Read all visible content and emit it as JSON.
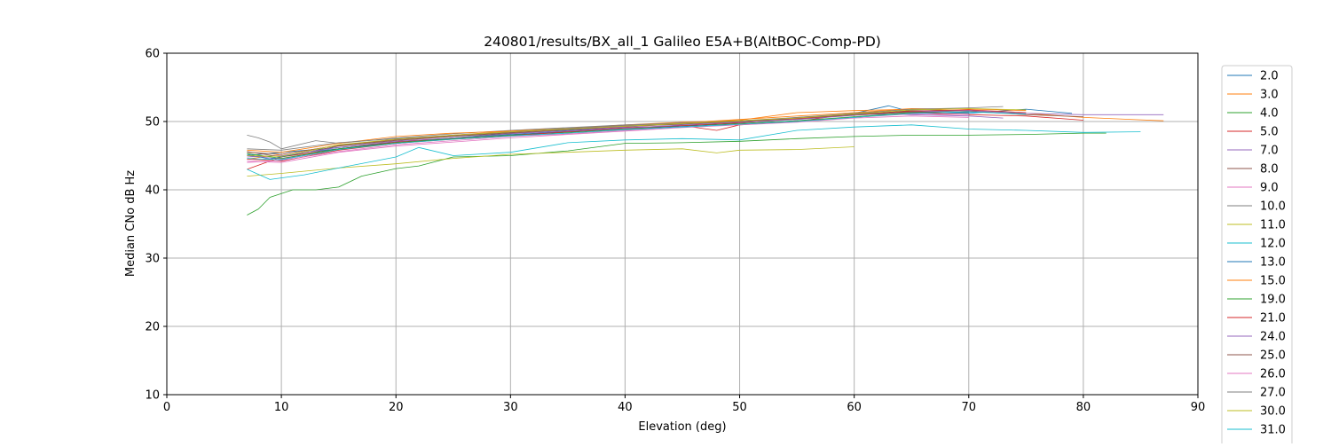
{
  "chart_data": {
    "type": "line",
    "title": "240801/results/BX_all_1 Galileo E5A+B(AltBOC-Comp-PD)",
    "xlabel": "Elevation (deg)",
    "ylabel": "Median CNo dB Hz",
    "xlim": [
      0,
      90
    ],
    "ylim": [
      10,
      60
    ],
    "xticks": [
      "0",
      "10",
      "20",
      "30",
      "40",
      "50",
      "60",
      "70",
      "80",
      "90"
    ],
    "yticks": [
      "10",
      "20",
      "30",
      "40",
      "50",
      "60"
    ],
    "grid": true,
    "legend_position": "right",
    "series": [
      {
        "name": "2.0",
        "color": "#1f77b4",
        "x": [
          7,
          10,
          15,
          20,
          25,
          30,
          35,
          40,
          45,
          50,
          55,
          60,
          63,
          65,
          70,
          75,
          79
        ],
        "values": [
          45.0,
          45.5,
          46.2,
          47.0,
          47.6,
          48.3,
          48.7,
          49.2,
          49.8,
          50.1,
          50.4,
          51.2,
          52.3,
          51.4,
          51.2,
          51.8,
          51.2
        ]
      },
      {
        "name": "3.0",
        "color": "#ff7f0e",
        "x": [
          7,
          10,
          15,
          20,
          25,
          30,
          35,
          40,
          45,
          50,
          55,
          60,
          65,
          70,
          75,
          80,
          87
        ],
        "values": [
          44.5,
          45.2,
          46.5,
          47.4,
          48.0,
          48.6,
          49.0,
          49.5,
          49.9,
          50.2,
          51.3,
          51.6,
          51.8,
          51.6,
          51.2,
          50.6,
          50.1
        ]
      },
      {
        "name": "4.0",
        "color": "#2ca02c",
        "x": [
          7,
          8,
          9,
          11,
          13,
          15,
          17,
          20,
          22,
          25,
          30,
          35,
          40,
          45,
          50,
          55,
          60,
          65,
          70,
          75,
          80,
          82
        ],
        "values": [
          36.3,
          37.2,
          38.9,
          40.0,
          40.0,
          40.4,
          42.0,
          43.1,
          43.5,
          44.8,
          45.0,
          45.7,
          46.8,
          46.9,
          47.1,
          47.5,
          47.8,
          48.0,
          48.0,
          48.1,
          48.3,
          48.3
        ]
      },
      {
        "name": "5.0",
        "color": "#d62728",
        "x": [
          7,
          10,
          15,
          20,
          25,
          30,
          35,
          40,
          45,
          48,
          50,
          55,
          60,
          65,
          70,
          75,
          80
        ],
        "values": [
          43.0,
          44.8,
          46.0,
          47.0,
          47.6,
          48.0,
          48.6,
          49.1,
          49.4,
          48.7,
          49.5,
          50.0,
          51.2,
          51.3,
          51.0,
          50.8,
          50.2
        ]
      },
      {
        "name": "7.0",
        "color": "#9467bd",
        "x": [
          7,
          10,
          15,
          20,
          25,
          30,
          35,
          40,
          45,
          50,
          55,
          60,
          65,
          70,
          73
        ],
        "values": [
          45.0,
          44.5,
          46.0,
          46.8,
          47.5,
          48.2,
          48.8,
          49.2,
          49.7,
          49.9,
          50.6,
          51.1,
          51.0,
          50.8,
          50.5
        ]
      },
      {
        "name": "8.0",
        "color": "#8c564b",
        "x": [
          7,
          10,
          15,
          20,
          25,
          30,
          35,
          40,
          45,
          50,
          55,
          60,
          65,
          70,
          75,
          80
        ],
        "values": [
          45.6,
          44.8,
          46.4,
          47.2,
          47.8,
          48.3,
          48.8,
          49.3,
          49.6,
          50.0,
          50.3,
          51.0,
          51.6,
          51.5,
          51.0,
          50.7
        ]
      },
      {
        "name": "9.0",
        "color": "#e377c2",
        "x": [
          7,
          10,
          15,
          20,
          25,
          30,
          35,
          40,
          45,
          50,
          55,
          60,
          65,
          70
        ],
        "values": [
          44.2,
          44.0,
          45.5,
          46.4,
          47.0,
          47.6,
          48.1,
          48.6,
          49.1,
          49.5,
          49.9,
          50.5,
          50.8,
          50.6
        ]
      },
      {
        "name": "10.0",
        "color": "#7f7f7f",
        "x": [
          7,
          8,
          9,
          10,
          13,
          15,
          20,
          25,
          30,
          35,
          40,
          45,
          50,
          55,
          60,
          65,
          70
        ],
        "values": [
          48.0,
          47.6,
          47.0,
          46.0,
          47.2,
          46.8,
          47.6,
          48.2,
          48.7,
          49.1,
          49.5,
          49.8,
          50.1,
          50.5,
          51.2,
          51.8,
          51.5
        ]
      },
      {
        "name": "11.0",
        "color": "#bcbd22",
        "x": [
          7,
          10,
          15,
          20,
          25,
          30,
          35,
          40,
          45,
          48,
          50,
          55,
          60
        ],
        "values": [
          42.0,
          42.4,
          43.2,
          43.8,
          44.6,
          45.2,
          45.5,
          45.8,
          46.0,
          45.4,
          45.8,
          45.9,
          46.3
        ]
      },
      {
        "name": "12.0",
        "color": "#17becf",
        "x": [
          7,
          9,
          12,
          15,
          20,
          22,
          25,
          30,
          35,
          40,
          45,
          50,
          55,
          60,
          65,
          70,
          75,
          80,
          85
        ],
        "values": [
          43.0,
          41.5,
          42.2,
          43.2,
          44.8,
          46.2,
          45.0,
          45.5,
          46.9,
          47.3,
          47.5,
          47.3,
          48.7,
          49.2,
          49.5,
          48.9,
          48.7,
          48.4,
          48.5
        ]
      },
      {
        "name": "13.0",
        "color": "#1f77b4",
        "x": [
          7,
          9,
          12,
          15,
          20,
          25,
          30,
          35,
          40,
          45,
          50,
          55,
          60,
          65,
          70
        ],
        "values": [
          45.2,
          44.5,
          45.5,
          46.0,
          46.8,
          47.6,
          48.1,
          48.5,
          48.9,
          49.3,
          49.7,
          50.1,
          50.6,
          51.2,
          51.4
        ]
      },
      {
        "name": "15.0",
        "color": "#ff7f0e",
        "x": [
          7,
          10,
          15,
          20,
          25,
          30,
          35,
          40,
          45,
          50,
          55,
          60,
          65,
          70,
          75
        ],
        "values": [
          45.8,
          45.5,
          46.8,
          47.8,
          48.3,
          48.6,
          49.0,
          49.4,
          49.8,
          50.3,
          50.8,
          51.3,
          51.9,
          51.8,
          51.6
        ]
      },
      {
        "name": "19.0",
        "color": "#2ca02c",
        "x": [
          7,
          10,
          15,
          20,
          25,
          30,
          35,
          40,
          45,
          50,
          55,
          60,
          65,
          70
        ],
        "values": [
          45.3,
          44.6,
          46.0,
          46.9,
          47.5,
          48.0,
          48.4,
          48.9,
          49.4,
          49.7,
          50.1,
          50.7,
          51.3,
          51.6
        ]
      },
      {
        "name": "21.0",
        "color": "#d62728",
        "x": [
          7,
          10,
          15,
          20,
          25,
          30,
          35,
          40,
          45,
          50,
          55,
          60,
          65,
          70,
          75
        ],
        "values": [
          44.5,
          44.2,
          45.8,
          46.8,
          47.4,
          47.9,
          48.5,
          49.0,
          49.4,
          49.8,
          50.4,
          51.0,
          51.5,
          51.7,
          51.3
        ]
      },
      {
        "name": "24.0",
        "color": "#9467bd",
        "x": [
          7,
          10,
          15,
          20,
          25,
          30,
          35,
          40,
          45,
          50,
          55,
          60,
          65,
          70,
          75,
          80,
          87
        ],
        "values": [
          44.8,
          45.0,
          46.2,
          47.1,
          47.6,
          48.2,
          48.6,
          49.0,
          49.5,
          49.9,
          50.3,
          50.9,
          51.4,
          51.6,
          51.2,
          51.0,
          51.0
        ]
      },
      {
        "name": "25.0",
        "color": "#8c564b",
        "x": [
          7,
          10,
          15,
          20,
          25,
          30,
          35,
          40,
          45,
          50,
          55,
          60,
          65,
          70
        ],
        "values": [
          45.5,
          45.2,
          46.5,
          47.3,
          47.9,
          48.4,
          48.9,
          49.3,
          49.7,
          50.0,
          50.5,
          51.0,
          51.4,
          51.3
        ]
      },
      {
        "name": "26.0",
        "color": "#e377c2",
        "x": [
          7,
          10,
          15,
          20,
          25,
          30,
          35,
          40,
          45,
          50,
          55,
          60,
          65,
          70
        ],
        "values": [
          44.0,
          44.3,
          45.6,
          46.6,
          47.2,
          47.8,
          48.2,
          48.7,
          49.2,
          49.6,
          50.0,
          50.6,
          51.1,
          51.0
        ]
      },
      {
        "name": "27.0",
        "color": "#7f7f7f",
        "x": [
          7,
          10,
          15,
          20,
          25,
          30,
          35,
          40,
          45,
          50,
          55,
          60,
          65,
          70,
          73
        ],
        "values": [
          46.0,
          45.8,
          46.9,
          47.5,
          48.0,
          48.5,
          49.0,
          49.4,
          49.8,
          50.1,
          50.6,
          51.2,
          51.8,
          52.0,
          52.2
        ]
      },
      {
        "name": "30.0",
        "color": "#bcbd22",
        "x": [
          7,
          10,
          15,
          20,
          25,
          30,
          35,
          40,
          45,
          50,
          55,
          60,
          65,
          70,
          75
        ],
        "values": [
          45.0,
          44.9,
          46.6,
          47.4,
          48.0,
          48.5,
          48.9,
          49.3,
          49.7,
          50.1,
          50.5,
          51.1,
          51.7,
          51.9,
          51.7
        ]
      },
      {
        "name": "31.0",
        "color": "#17becf",
        "x": [
          7,
          10,
          15,
          20,
          25,
          30,
          35,
          40,
          45,
          50,
          55,
          60,
          65,
          70,
          75
        ],
        "values": [
          44.6,
          44.4,
          45.9,
          46.8,
          47.4,
          47.9,
          48.3,
          48.8,
          49.2,
          49.6,
          50.0,
          50.6,
          51.2,
          51.4,
          51.1
        ]
      }
    ]
  }
}
